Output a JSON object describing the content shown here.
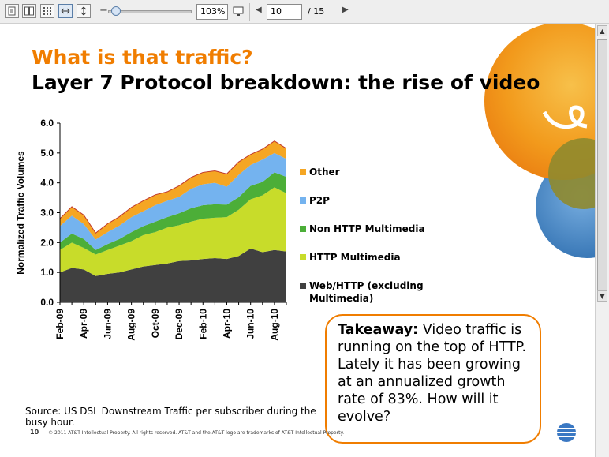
{
  "toolbar": {
    "zoom": "103%",
    "page_current": "10",
    "page_total": "/ 15",
    "icons": [
      "single-page-icon",
      "two-page-icon",
      "thumbnails-icon",
      "fit-width-icon",
      "fit-height-icon",
      "zoom-out-icon",
      "zoom-slider",
      "fullscreen-icon",
      "prev-page-icon",
      "next-page-icon"
    ]
  },
  "slide": {
    "title1": "What is that traffic?",
    "title2": "Layer 7 Protocol breakdown: the rise of video",
    "source": "Source: US DSL Downstream Traffic per subscriber during the busy hour.",
    "page_number": "10",
    "footer": "© 2011 AT&T Intellectual Property. All rights reserved. AT&T and the AT&T logo are trademarks of AT&T Intellectual Property.",
    "callout": {
      "bold": "Takeaway:",
      "text": " Video traffic is running on the top of HTTP. Lately it has been growing at an annualized growth rate of 83%. How will it evolve?"
    },
    "colors": {
      "accent": "#f07d00",
      "other": "#f5a623",
      "p2p": "#74b3ef",
      "non_http": "#4cae38",
      "http": "#c8dc2a",
      "web": "#404040"
    }
  },
  "chart_data": {
    "type": "area",
    "stacked": true,
    "title": "",
    "xlabel": "",
    "ylabel": "Normalized Traffic Volumes",
    "ylim": [
      0,
      6
    ],
    "yticks": [
      "0.0",
      "1.0",
      "2.0",
      "3.0",
      "4.0",
      "5.0",
      "6.0"
    ],
    "xticks": [
      "Feb-09",
      "Apr-09",
      "Jun-09",
      "Aug-09",
      "Oct-09",
      "Dec-09",
      "Feb-10",
      "Apr-10",
      "Jun-10",
      "Aug-10"
    ],
    "x": [
      "Feb-09",
      "Mar-09",
      "Apr-09",
      "May-09",
      "Jun-09",
      "Jul-09",
      "Aug-09",
      "Sep-09",
      "Oct-09",
      "Nov-09",
      "Dec-09",
      "Jan-10",
      "Feb-10",
      "Mar-10",
      "Apr-10",
      "May-10",
      "Jun-10",
      "Jul-10",
      "Aug-10",
      "Sep-10"
    ],
    "series": [
      {
        "name": "Web/HTTP (excluding Multimedia)",
        "color": "#404040",
        "values": [
          1.0,
          1.15,
          1.1,
          0.88,
          0.95,
          1.0,
          1.1,
          1.2,
          1.25,
          1.3,
          1.38,
          1.4,
          1.45,
          1.48,
          1.45,
          1.55,
          1.8,
          1.68,
          1.75,
          1.7
        ]
      },
      {
        "name": "HTTP Multimedia",
        "color": "#c8dc2a",
        "values": [
          0.75,
          0.85,
          0.72,
          0.72,
          0.8,
          0.9,
          0.95,
          1.05,
          1.1,
          1.2,
          1.2,
          1.3,
          1.35,
          1.35,
          1.4,
          1.55,
          1.65,
          1.9,
          2.1,
          1.95
        ]
      },
      {
        "name": "Non HTTP Multimedia",
        "color": "#4cae38",
        "values": [
          0.25,
          0.3,
          0.3,
          0.15,
          0.2,
          0.22,
          0.3,
          0.3,
          0.35,
          0.35,
          0.4,
          0.45,
          0.45,
          0.45,
          0.42,
          0.42,
          0.45,
          0.45,
          0.5,
          0.55
        ]
      },
      {
        "name": "P2P",
        "color": "#74b3ef",
        "values": [
          0.55,
          0.6,
          0.5,
          0.35,
          0.4,
          0.45,
          0.5,
          0.5,
          0.55,
          0.55,
          0.55,
          0.65,
          0.7,
          0.72,
          0.6,
          0.75,
          0.7,
          0.75,
          0.65,
          0.6
        ]
      },
      {
        "name": "Other",
        "color": "#f5a623",
        "values": [
          0.25,
          0.3,
          0.3,
          0.22,
          0.28,
          0.3,
          0.33,
          0.35,
          0.35,
          0.3,
          0.37,
          0.38,
          0.4,
          0.4,
          0.43,
          0.43,
          0.35,
          0.35,
          0.4,
          0.35
        ]
      }
    ],
    "legend": "right",
    "grid": false
  }
}
